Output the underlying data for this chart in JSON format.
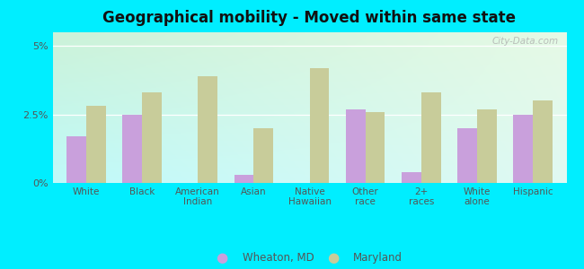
{
  "title": "Geographical mobility - Moved within same state",
  "categories": [
    "White",
    "Black",
    "American\nIndian",
    "Asian",
    "Native\nHawaiian",
    "Other\nrace",
    "2+\nraces",
    "White\nalone",
    "Hispanic"
  ],
  "wheaton_values": [
    1.7,
    2.5,
    0.0,
    0.3,
    0.0,
    2.7,
    0.4,
    2.0,
    2.5
  ],
  "maryland_values": [
    2.8,
    3.3,
    3.9,
    2.0,
    4.2,
    2.6,
    3.3,
    2.7,
    3.0
  ],
  "wheaton_color": "#c9a0dc",
  "maryland_color": "#c8cc9a",
  "background_outer": "#00eeff",
  "ylim": [
    0,
    5.5
  ],
  "yticks": [
    0,
    2.5,
    5
  ],
  "ytick_labels": [
    "0%",
    "2.5%",
    "5%"
  ],
  "bar_width": 0.35,
  "legend_wheaton": "Wheaton, MD",
  "legend_maryland": "Maryland",
  "watermark": "City-Data.com",
  "bg_topleft": [
    0.8,
    0.95,
    0.85
  ],
  "bg_topright": [
    0.9,
    0.98,
    0.9
  ],
  "bg_bottomleft": [
    0.75,
    0.98,
    0.98
  ],
  "bg_bottomright": [
    0.88,
    0.98,
    0.95
  ]
}
